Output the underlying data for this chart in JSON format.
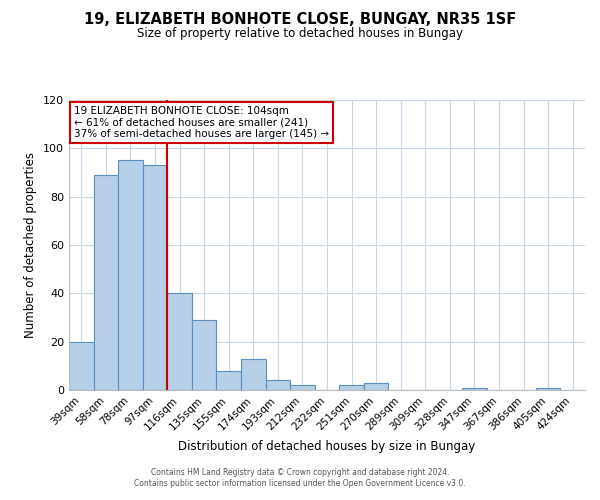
{
  "title": "19, ELIZABETH BONHOTE CLOSE, BUNGAY, NR35 1SF",
  "subtitle": "Size of property relative to detached houses in Bungay",
  "xlabel": "Distribution of detached houses by size in Bungay",
  "ylabel": "Number of detached properties",
  "categories": [
    "39sqm",
    "58sqm",
    "78sqm",
    "97sqm",
    "116sqm",
    "135sqm",
    "155sqm",
    "174sqm",
    "193sqm",
    "212sqm",
    "232sqm",
    "251sqm",
    "270sqm",
    "289sqm",
    "309sqm",
    "328sqm",
    "347sqm",
    "367sqm",
    "386sqm",
    "405sqm",
    "424sqm"
  ],
  "values": [
    20,
    89,
    95,
    93,
    40,
    29,
    8,
    13,
    4,
    2,
    0,
    2,
    3,
    0,
    0,
    0,
    1,
    0,
    0,
    1,
    0
  ],
  "bar_color": "#b8cfe8",
  "bar_edge_color": "#5a8fc0",
  "reference_line_color": "#cc0000",
  "reference_line_bin": 3,
  "ylim": [
    0,
    120
  ],
  "yticks": [
    0,
    20,
    40,
    60,
    80,
    100,
    120
  ],
  "annotation_text": "19 ELIZABETH BONHOTE CLOSE: 104sqm\n← 61% of detached houses are smaller (241)\n37% of semi-detached houses are larger (145) →",
  "annotation_box_color": "#ffffff",
  "annotation_box_edge_color": "#cc0000",
  "footer_line1": "Contains HM Land Registry data © Crown copyright and database right 2024.",
  "footer_line2": "Contains public sector information licensed under the Open Government Licence v3.0.",
  "background_color": "#ffffff",
  "grid_color": "#c8d8e8"
}
